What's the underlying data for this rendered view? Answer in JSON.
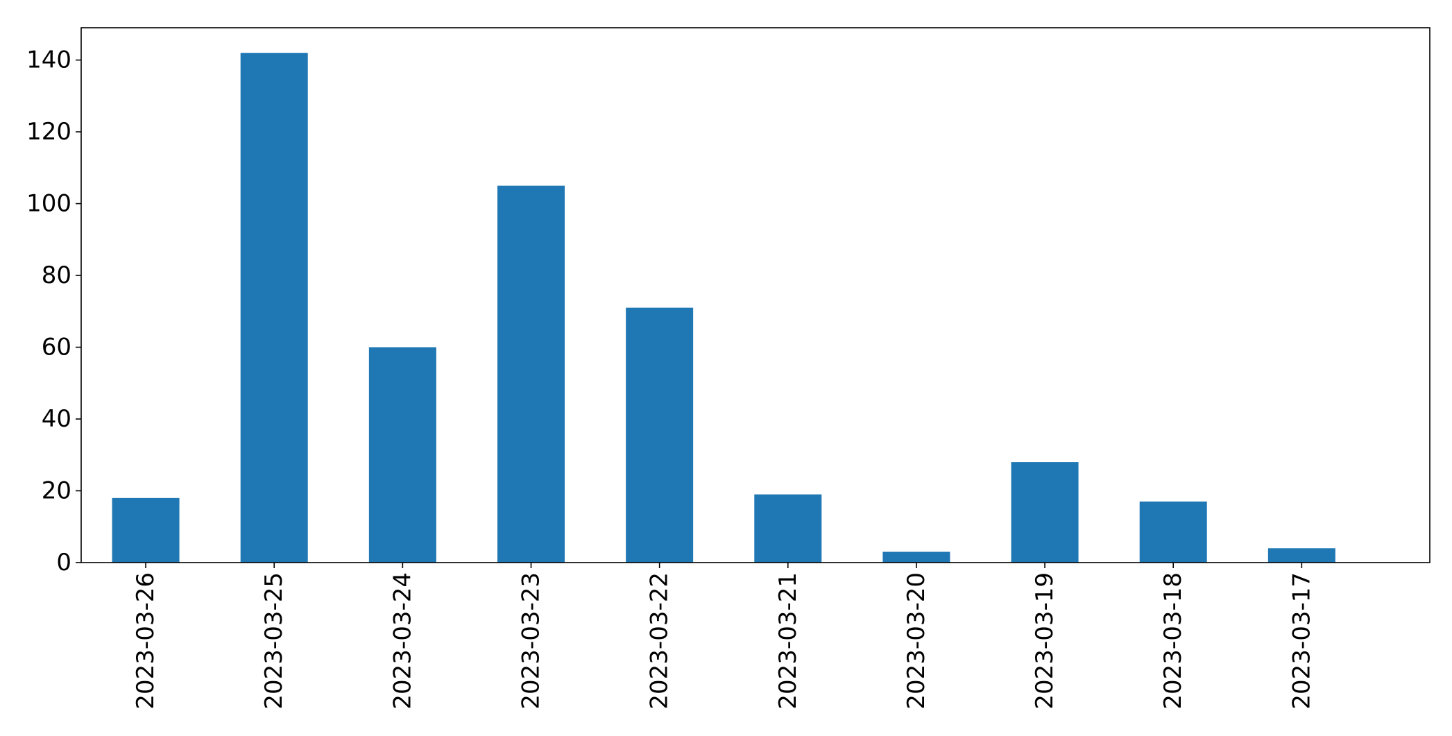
{
  "chart_data": {
    "type": "bar",
    "title": "",
    "xlabel": "",
    "ylabel": "",
    "categories": [
      "2023-03-26",
      "2023-03-25",
      "2023-03-24",
      "2023-03-23",
      "2023-03-22",
      "2023-03-21",
      "2023-03-20",
      "2023-03-19",
      "2023-03-18",
      "2023-03-17"
    ],
    "values": [
      18,
      142,
      60,
      105,
      71,
      19,
      3,
      28,
      17,
      4
    ],
    "ylim": [
      0,
      149
    ],
    "yticks": [
      0,
      20,
      40,
      60,
      80,
      100,
      120,
      140
    ],
    "bar_color": "#1f77b4",
    "grid": false,
    "legend": "none"
  }
}
